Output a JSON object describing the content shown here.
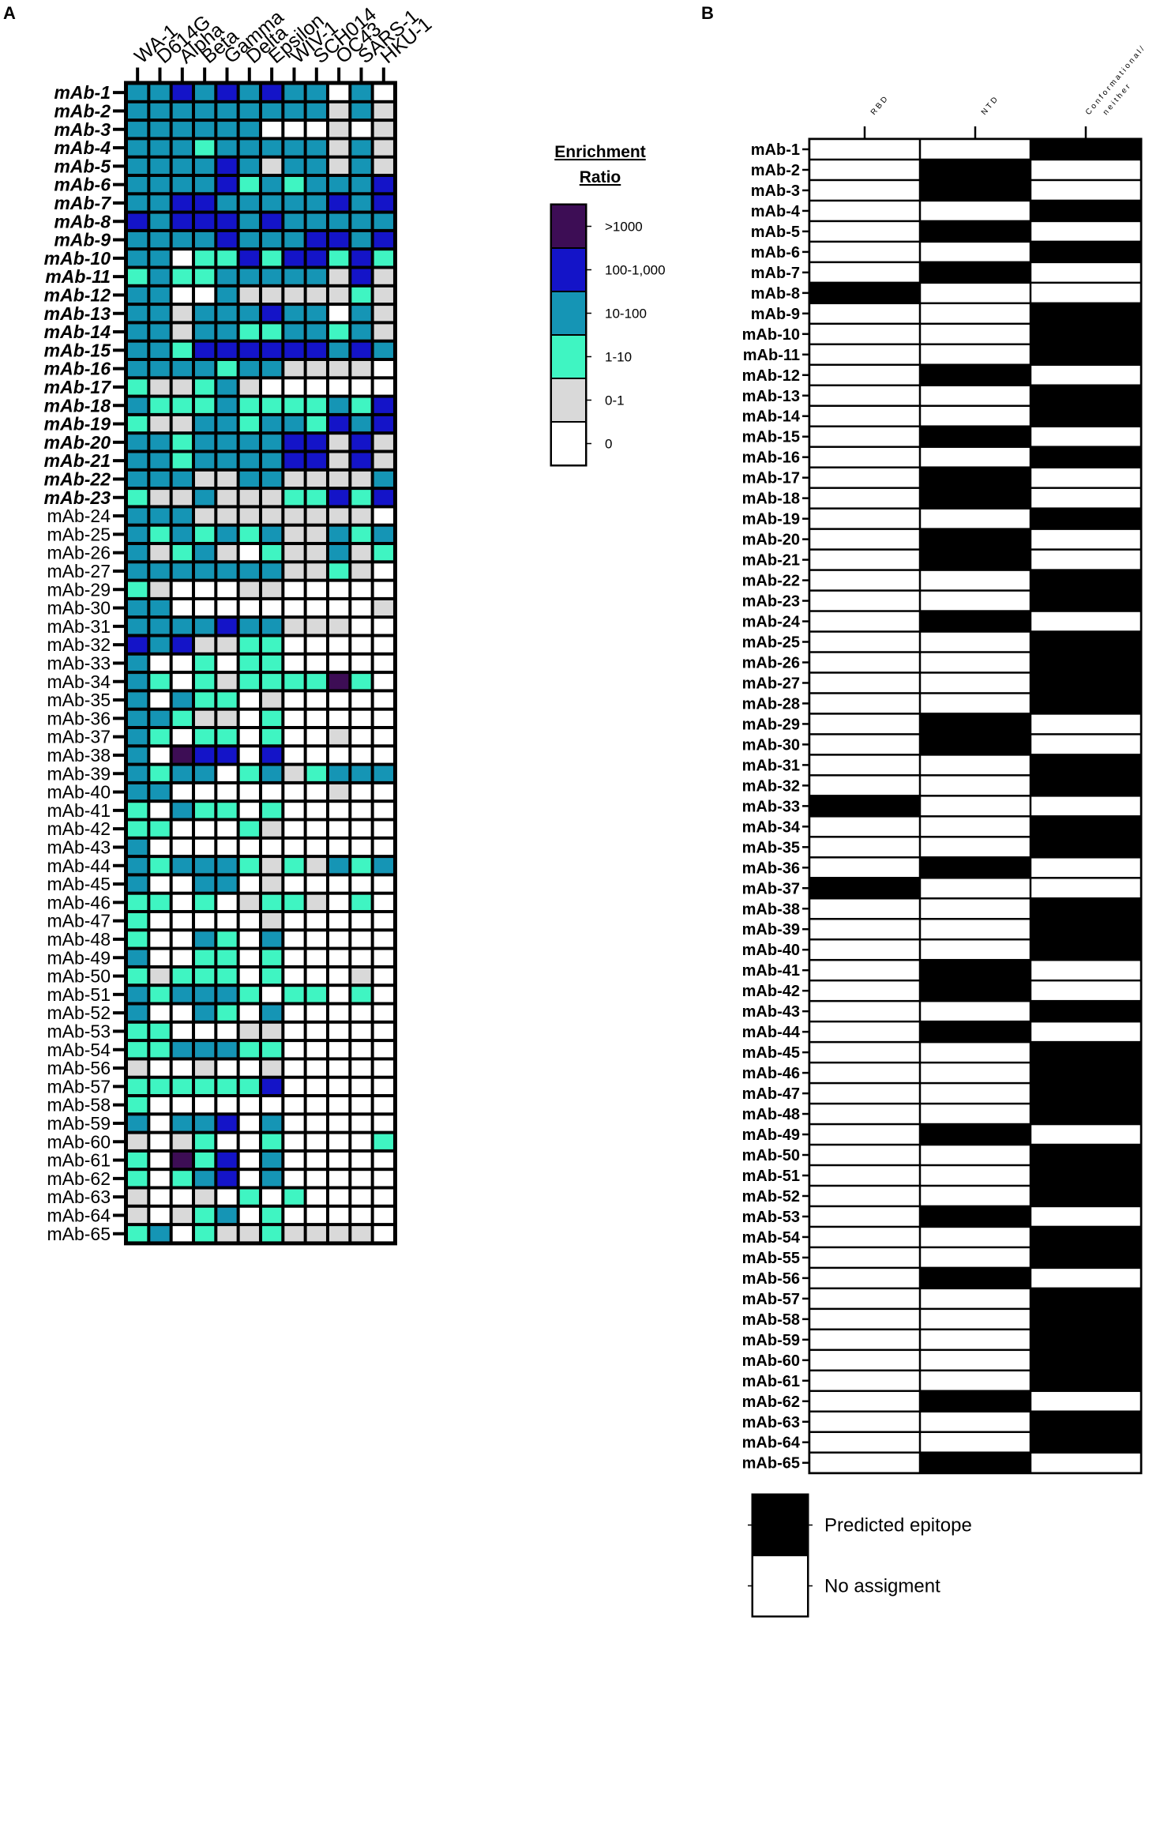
{
  "chart_data": [
    {
      "panel_label": "A",
      "type": "heatmap",
      "columns": [
        "WA-1",
        "D614G",
        "Alpha",
        "Beta",
        "Gamma",
        "Delta",
        "Epsilon",
        "WIV-1",
        "SCH014",
        "OC43",
        "SARS-1",
        "HKU-1"
      ],
      "rows": [
        "mAb-1",
        "mAb-2",
        "mAb-3",
        "mAb-4",
        "mAb-5",
        "mAb-6",
        "mAb-7",
        "mAb-8",
        "mAb-9",
        "mAb-10",
        "mAb-11",
        "mAb-12",
        "mAb-13",
        "mAb-14",
        "mAb-15",
        "mAb-16",
        "mAb-17",
        "mAb-18",
        "mAb-19",
        "mAb-20",
        "mAb-21",
        "mAb-22",
        "mAb-23",
        "mAb-24",
        "mAb-25",
        "mAb-26",
        "mAb-27",
        "mAb-29",
        "mAb-30",
        "mAb-31",
        "mAb-32",
        "mAb-33",
        "mAb-34",
        "mAb-35",
        "mAb-36",
        "mAb-37",
        "mAb-38",
        "mAb-39",
        "mAb-40",
        "mAb-41",
        "mAb-42",
        "mAb-43",
        "mAb-44",
        "mAb-45",
        "mAb-46",
        "mAb-47",
        "mAb-48",
        "mAb-49",
        "mAb-50",
        "mAb-51",
        "mAb-52",
        "mAb-53",
        "mAb-54",
        "mAb-56",
        "mAb-57",
        "mAb-58",
        "mAb-59",
        "mAb-60",
        "mAb-61",
        "mAb-62",
        "mAb-63",
        "mAb-64",
        "mAb-65"
      ],
      "bold_italic_rows": 23,
      "values": [
        [
          3,
          3,
          4,
          3,
          4,
          3,
          4,
          3,
          3,
          0,
          3,
          0
        ],
        [
          3,
          3,
          3,
          3,
          3,
          3,
          3,
          3,
          3,
          1,
          3,
          1
        ],
        [
          3,
          3,
          3,
          3,
          3,
          3,
          0,
          0,
          0,
          1,
          0,
          1
        ],
        [
          3,
          3,
          3,
          2,
          3,
          3,
          3,
          3,
          3,
          1,
          3,
          1
        ],
        [
          3,
          3,
          3,
          3,
          4,
          3,
          1,
          3,
          3,
          1,
          3,
          1
        ],
        [
          3,
          3,
          3,
          3,
          4,
          2,
          3,
          2,
          3,
          3,
          3,
          4
        ],
        [
          3,
          3,
          4,
          4,
          3,
          3,
          3,
          3,
          3,
          4,
          3,
          4
        ],
        [
          4,
          3,
          4,
          4,
          4,
          3,
          4,
          3,
          3,
          3,
          3,
          3
        ],
        [
          3,
          3,
          3,
          3,
          4,
          3,
          3,
          3,
          4,
          4,
          3,
          4
        ],
        [
          3,
          3,
          0,
          2,
          2,
          4,
          2,
          4,
          4,
          2,
          4,
          2
        ],
        [
          2,
          3,
          2,
          2,
          3,
          3,
          3,
          3,
          3,
          1,
          4,
          1
        ],
        [
          3,
          3,
          0,
          0,
          3,
          1,
          1,
          1,
          1,
          1,
          2,
          1
        ],
        [
          3,
          3,
          1,
          3,
          3,
          3,
          4,
          3,
          3,
          0,
          3,
          1
        ],
        [
          3,
          3,
          1,
          3,
          3,
          2,
          2,
          3,
          3,
          2,
          3,
          1
        ],
        [
          3,
          3,
          2,
          4,
          4,
          4,
          4,
          4,
          4,
          3,
          4,
          3
        ],
        [
          3,
          3,
          3,
          3,
          2,
          3,
          3,
          1,
          1,
          1,
          1,
          0
        ],
        [
          2,
          1,
          1,
          2,
          3,
          1,
          0,
          0,
          0,
          0,
          0,
          0
        ],
        [
          3,
          2,
          2,
          2,
          3,
          2,
          2,
          2,
          2,
          3,
          2,
          4
        ],
        [
          2,
          1,
          1,
          3,
          3,
          2,
          3,
          3,
          2,
          4,
          3,
          4
        ],
        [
          3,
          3,
          2,
          3,
          3,
          3,
          3,
          4,
          4,
          1,
          4,
          1
        ],
        [
          3,
          3,
          2,
          3,
          3,
          3,
          3,
          4,
          4,
          1,
          4,
          1
        ],
        [
          3,
          3,
          3,
          1,
          1,
          3,
          3,
          1,
          1,
          1,
          1,
          3
        ],
        [
          2,
          1,
          1,
          3,
          1,
          1,
          1,
          2,
          2,
          4,
          2,
          4
        ],
        [
          3,
          3,
          3,
          1,
          1,
          1,
          1,
          1,
          1,
          1,
          1,
          0
        ],
        [
          3,
          2,
          3,
          2,
          3,
          2,
          3,
          1,
          1,
          3,
          2,
          3
        ],
        [
          3,
          1,
          2,
          3,
          1,
          0,
          2,
          1,
          1,
          3,
          1,
          2
        ],
        [
          3,
          3,
          3,
          3,
          3,
          3,
          3,
          1,
          1,
          2,
          1,
          0
        ],
        [
          2,
          1,
          0,
          0,
          0,
          1,
          1,
          0,
          0,
          0,
          0,
          0
        ],
        [
          3,
          3,
          0,
          0,
          0,
          0,
          0,
          0,
          0,
          0,
          0,
          1
        ],
        [
          3,
          3,
          3,
          3,
          4,
          3,
          3,
          1,
          1,
          1,
          0,
          0
        ],
        [
          4,
          3,
          4,
          1,
          1,
          2,
          2,
          0,
          0,
          0,
          0,
          0
        ],
        [
          3,
          0,
          0,
          2,
          0,
          2,
          2,
          0,
          0,
          0,
          0,
          0
        ],
        [
          3,
          2,
          0,
          2,
          1,
          2,
          2,
          2,
          2,
          5,
          2,
          0
        ],
        [
          3,
          0,
          3,
          2,
          2,
          0,
          1,
          0,
          0,
          0,
          0,
          0
        ],
        [
          3,
          3,
          2,
          1,
          1,
          0,
          2,
          0,
          0,
          0,
          0,
          0
        ],
        [
          3,
          2,
          0,
          2,
          2,
          0,
          2,
          0,
          0,
          1,
          0,
          0
        ],
        [
          3,
          0,
          5,
          4,
          4,
          0,
          4,
          0,
          0,
          0,
          0,
          0
        ],
        [
          3,
          2,
          3,
          3,
          0,
          2,
          3,
          1,
          2,
          3,
          3,
          3
        ],
        [
          3,
          3,
          0,
          0,
          0,
          0,
          0,
          0,
          0,
          1,
          0,
          0
        ],
        [
          2,
          0,
          3,
          2,
          2,
          0,
          2,
          0,
          0,
          0,
          0,
          0
        ],
        [
          2,
          2,
          0,
          0,
          0,
          2,
          1,
          0,
          0,
          0,
          0,
          0
        ],
        [
          3,
          0,
          0,
          0,
          0,
          0,
          0,
          0,
          0,
          0,
          0,
          0
        ],
        [
          3,
          2,
          3,
          3,
          3,
          2,
          1,
          2,
          1,
          3,
          2,
          3
        ],
        [
          3,
          0,
          0,
          3,
          3,
          0,
          1,
          0,
          0,
          0,
          0,
          0
        ],
        [
          2,
          2,
          0,
          2,
          0,
          1,
          2,
          2,
          1,
          0,
          2,
          0
        ],
        [
          2,
          0,
          0,
          0,
          0,
          0,
          1,
          0,
          0,
          0,
          0,
          0
        ],
        [
          2,
          0,
          0,
          3,
          2,
          0,
          3,
          0,
          0,
          0,
          0,
          0
        ],
        [
          3,
          0,
          0,
          2,
          2,
          0,
          2,
          0,
          0,
          0,
          0,
          0
        ],
        [
          2,
          1,
          2,
          2,
          2,
          0,
          2,
          0,
          0,
          0,
          1,
          0
        ],
        [
          3,
          2,
          3,
          3,
          3,
          2,
          0,
          2,
          2,
          0,
          2,
          0
        ],
        [
          3,
          0,
          0,
          3,
          2,
          0,
          3,
          0,
          0,
          0,
          0,
          0
        ],
        [
          2,
          2,
          0,
          0,
          0,
          1,
          1,
          0,
          0,
          0,
          0,
          0
        ],
        [
          2,
          2,
          3,
          3,
          3,
          2,
          2,
          0,
          0,
          0,
          0,
          0
        ],
        [
          1,
          0,
          0,
          1,
          0,
          0,
          1,
          0,
          0,
          0,
          0,
          0
        ],
        [
          2,
          2,
          2,
          2,
          2,
          2,
          4,
          0,
          0,
          0,
          0,
          0
        ],
        [
          2,
          0,
          0,
          0,
          0,
          0,
          0,
          0,
          0,
          0,
          0,
          0
        ],
        [
          3,
          0,
          3,
          3,
          4,
          0,
          3,
          0,
          0,
          0,
          0,
          0
        ],
        [
          1,
          0,
          1,
          2,
          0,
          0,
          2,
          0,
          0,
          0,
          0,
          2
        ],
        [
          2,
          0,
          5,
          2,
          4,
          0,
          3,
          0,
          0,
          0,
          0,
          0
        ],
        [
          2,
          0,
          2,
          3,
          4,
          0,
          3,
          0,
          0,
          0,
          0,
          0
        ],
        [
          1,
          0,
          0,
          1,
          0,
          2,
          0,
          2,
          0,
          0,
          0,
          0
        ],
        [
          1,
          0,
          1,
          2,
          3,
          0,
          2,
          0,
          0,
          0,
          0,
          0
        ],
        [
          2,
          3,
          0,
          2,
          1,
          1,
          2,
          1,
          1,
          1,
          1,
          0
        ]
      ],
      "legend": {
        "title_line1": "Enrichment",
        "title_line2": "Ratio",
        "entries": [
          {
            "label": ">1000",
            "color": "#3d0d55"
          },
          {
            "label": "100-1,000",
            "color": "#1414c8"
          },
          {
            "label": "10-100",
            "color": "#1595b5"
          },
          {
            "label": "1-10",
            "color": "#3ff5c2"
          },
          {
            "label": "0-1",
            "color": "#d9d9d9"
          },
          {
            "label": "0",
            "color": "#ffffff"
          }
        ]
      }
    },
    {
      "panel_label": "B",
      "type": "heatmap",
      "columns": [
        "R B D",
        "N T D",
        "C o n f o r m a t i o n a l /",
        "n e i t h e r"
      ],
      "rows": [
        "mAb-1",
        "mAb-2",
        "mAb-3",
        "mAb-4",
        "mAb-5",
        "mAb-6",
        "mAb-7",
        "mAb-8",
        "mAb-9",
        "mAb-10",
        "mAb-11",
        "mAb-12",
        "mAb-13",
        "mAb-14",
        "mAb-15",
        "mAb-16",
        "mAb-17",
        "mAb-18",
        "mAb-19",
        "mAb-20",
        "mAb-21",
        "mAb-22",
        "mAb-23",
        "mAb-24",
        "mAb-25",
        "mAb-26",
        "mAb-27",
        "mAb-28",
        "mAb-29",
        "mAb-30",
        "mAb-31",
        "mAb-32",
        "mAb-33",
        "mAb-34",
        "mAb-35",
        "mAb-36",
        "mAb-37",
        "mAb-38",
        "mAb-39",
        "mAb-40",
        "mAb-41",
        "mAb-42",
        "mAb-43",
        "mAb-44",
        "mAb-45",
        "mAb-46",
        "mAb-47",
        "mAb-48",
        "mAb-49",
        "mAb-50",
        "mAb-51",
        "mAb-52",
        "mAb-53",
        "mAb-54",
        "mAb-55",
        "mAb-56",
        "mAb-57",
        "mAb-58",
        "mAb-59",
        "mAb-60",
        "mAb-61",
        "mAb-62",
        "mAb-63",
        "mAb-64",
        "mAb-65"
      ],
      "assignment": [
        "C",
        "N",
        "N",
        "C",
        "N",
        "C",
        "N",
        "R",
        "C",
        "C",
        "C",
        "N",
        "C",
        "C",
        "N",
        "C",
        "N",
        "N",
        "C",
        "N",
        "N",
        "C",
        "C",
        "N",
        "C",
        "C",
        "C",
        "C",
        "N",
        "N",
        "C",
        "C",
        "R",
        "C",
        "C",
        "N",
        "R",
        "C",
        "C",
        "C",
        "N",
        "N",
        "C",
        "N",
        "C",
        "C",
        "C",
        "C",
        "N",
        "C",
        "C",
        "C",
        "N",
        "C",
        "C",
        "N",
        "C",
        "C",
        "C",
        "C",
        "C",
        "N",
        "C",
        "C",
        "N"
      ],
      "legend": {
        "entries": [
          {
            "label": "Predicted epitope",
            "color": "#000000"
          },
          {
            "label": "No assigment",
            "color": "#ffffff"
          }
        ]
      }
    }
  ]
}
